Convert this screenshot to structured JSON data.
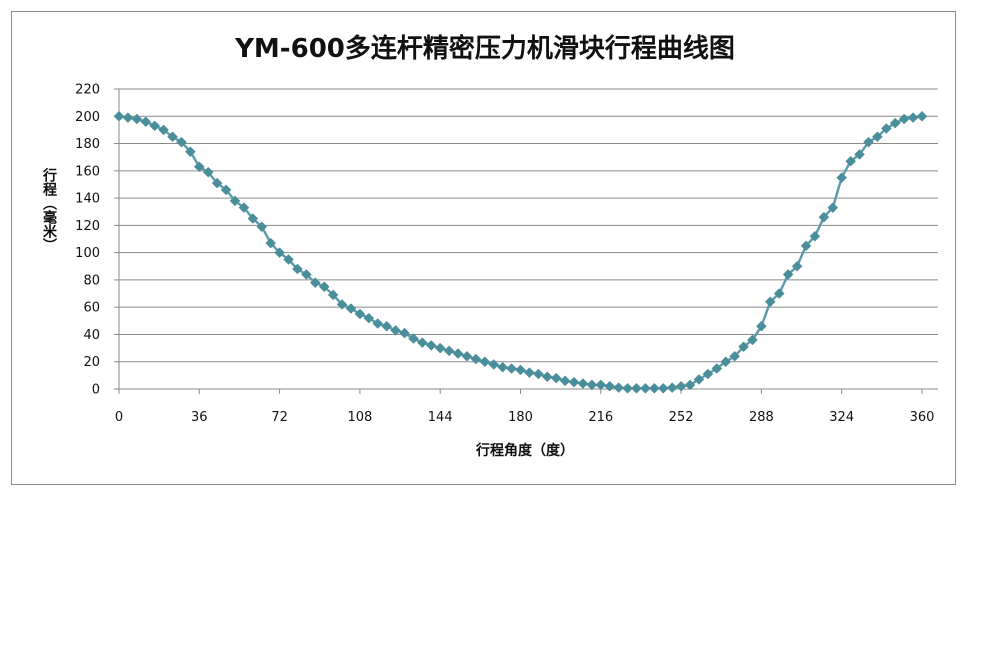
{
  "chart_data": {
    "type": "line",
    "title": "YM-600多连杆精密压力机滑块行程曲线图",
    "xlabel": "行程角度（度）",
    "ylabel": "行程（毫米）",
    "xlim": [
      0,
      360
    ],
    "ylim": [
      0,
      220
    ],
    "x_ticks": [
      0,
      36,
      72,
      108,
      144,
      180,
      216,
      252,
      288,
      324,
      360
    ],
    "y_ticks": [
      0,
      20,
      40,
      60,
      80,
      100,
      120,
      140,
      160,
      180,
      200,
      220
    ],
    "grid": "horizontal",
    "marker": "diamond",
    "color": "#4a8e9c",
    "line_color": "#5b9aa8",
    "series": [
      {
        "x": [
          0,
          4,
          8,
          12,
          16,
          20,
          24,
          28,
          32,
          36,
          40,
          44,
          48,
          52,
          56,
          60,
          64,
          68,
          72,
          76,
          80,
          84,
          88,
          92,
          96,
          100,
          104,
          108,
          112,
          116,
          120,
          124,
          128,
          132,
          136,
          140,
          144,
          148,
          152,
          156,
          160,
          164,
          168,
          172,
          176,
          180,
          184,
          188,
          192,
          196,
          200,
          204,
          208,
          212,
          216,
          220,
          224,
          228,
          232,
          236,
          240,
          244,
          248,
          252,
          256,
          260,
          264,
          268,
          272,
          276,
          280,
          284,
          288,
          292,
          296,
          300,
          304,
          308,
          312,
          316,
          320,
          324,
          328,
          332,
          336,
          340,
          344,
          348,
          352,
          356,
          360
        ],
        "values": [
          200,
          199,
          198,
          196,
          193,
          190,
          185,
          181,
          174,
          163,
          159,
          151,
          146,
          138,
          133,
          125,
          119,
          107,
          100,
          95,
          88,
          84,
          78,
          75,
          69,
          62,
          59,
          55,
          52,
          48,
          46,
          43,
          41,
          37,
          34,
          32,
          30,
          28,
          26,
          24,
          22,
          20,
          18,
          16,
          15,
          14,
          12,
          11,
          9,
          8,
          6,
          5,
          4,
          3,
          3,
          2,
          1,
          0.5,
          0.5,
          0.5,
          0.5,
          0.5,
          1,
          2,
          3,
          7,
          11,
          15,
          20,
          24,
          31,
          36,
          46,
          64,
          70,
          84,
          90,
          105,
          112,
          126,
          133,
          155,
          167,
          172,
          181,
          185,
          191,
          195,
          198,
          199,
          200
        ]
      }
    ]
  }
}
